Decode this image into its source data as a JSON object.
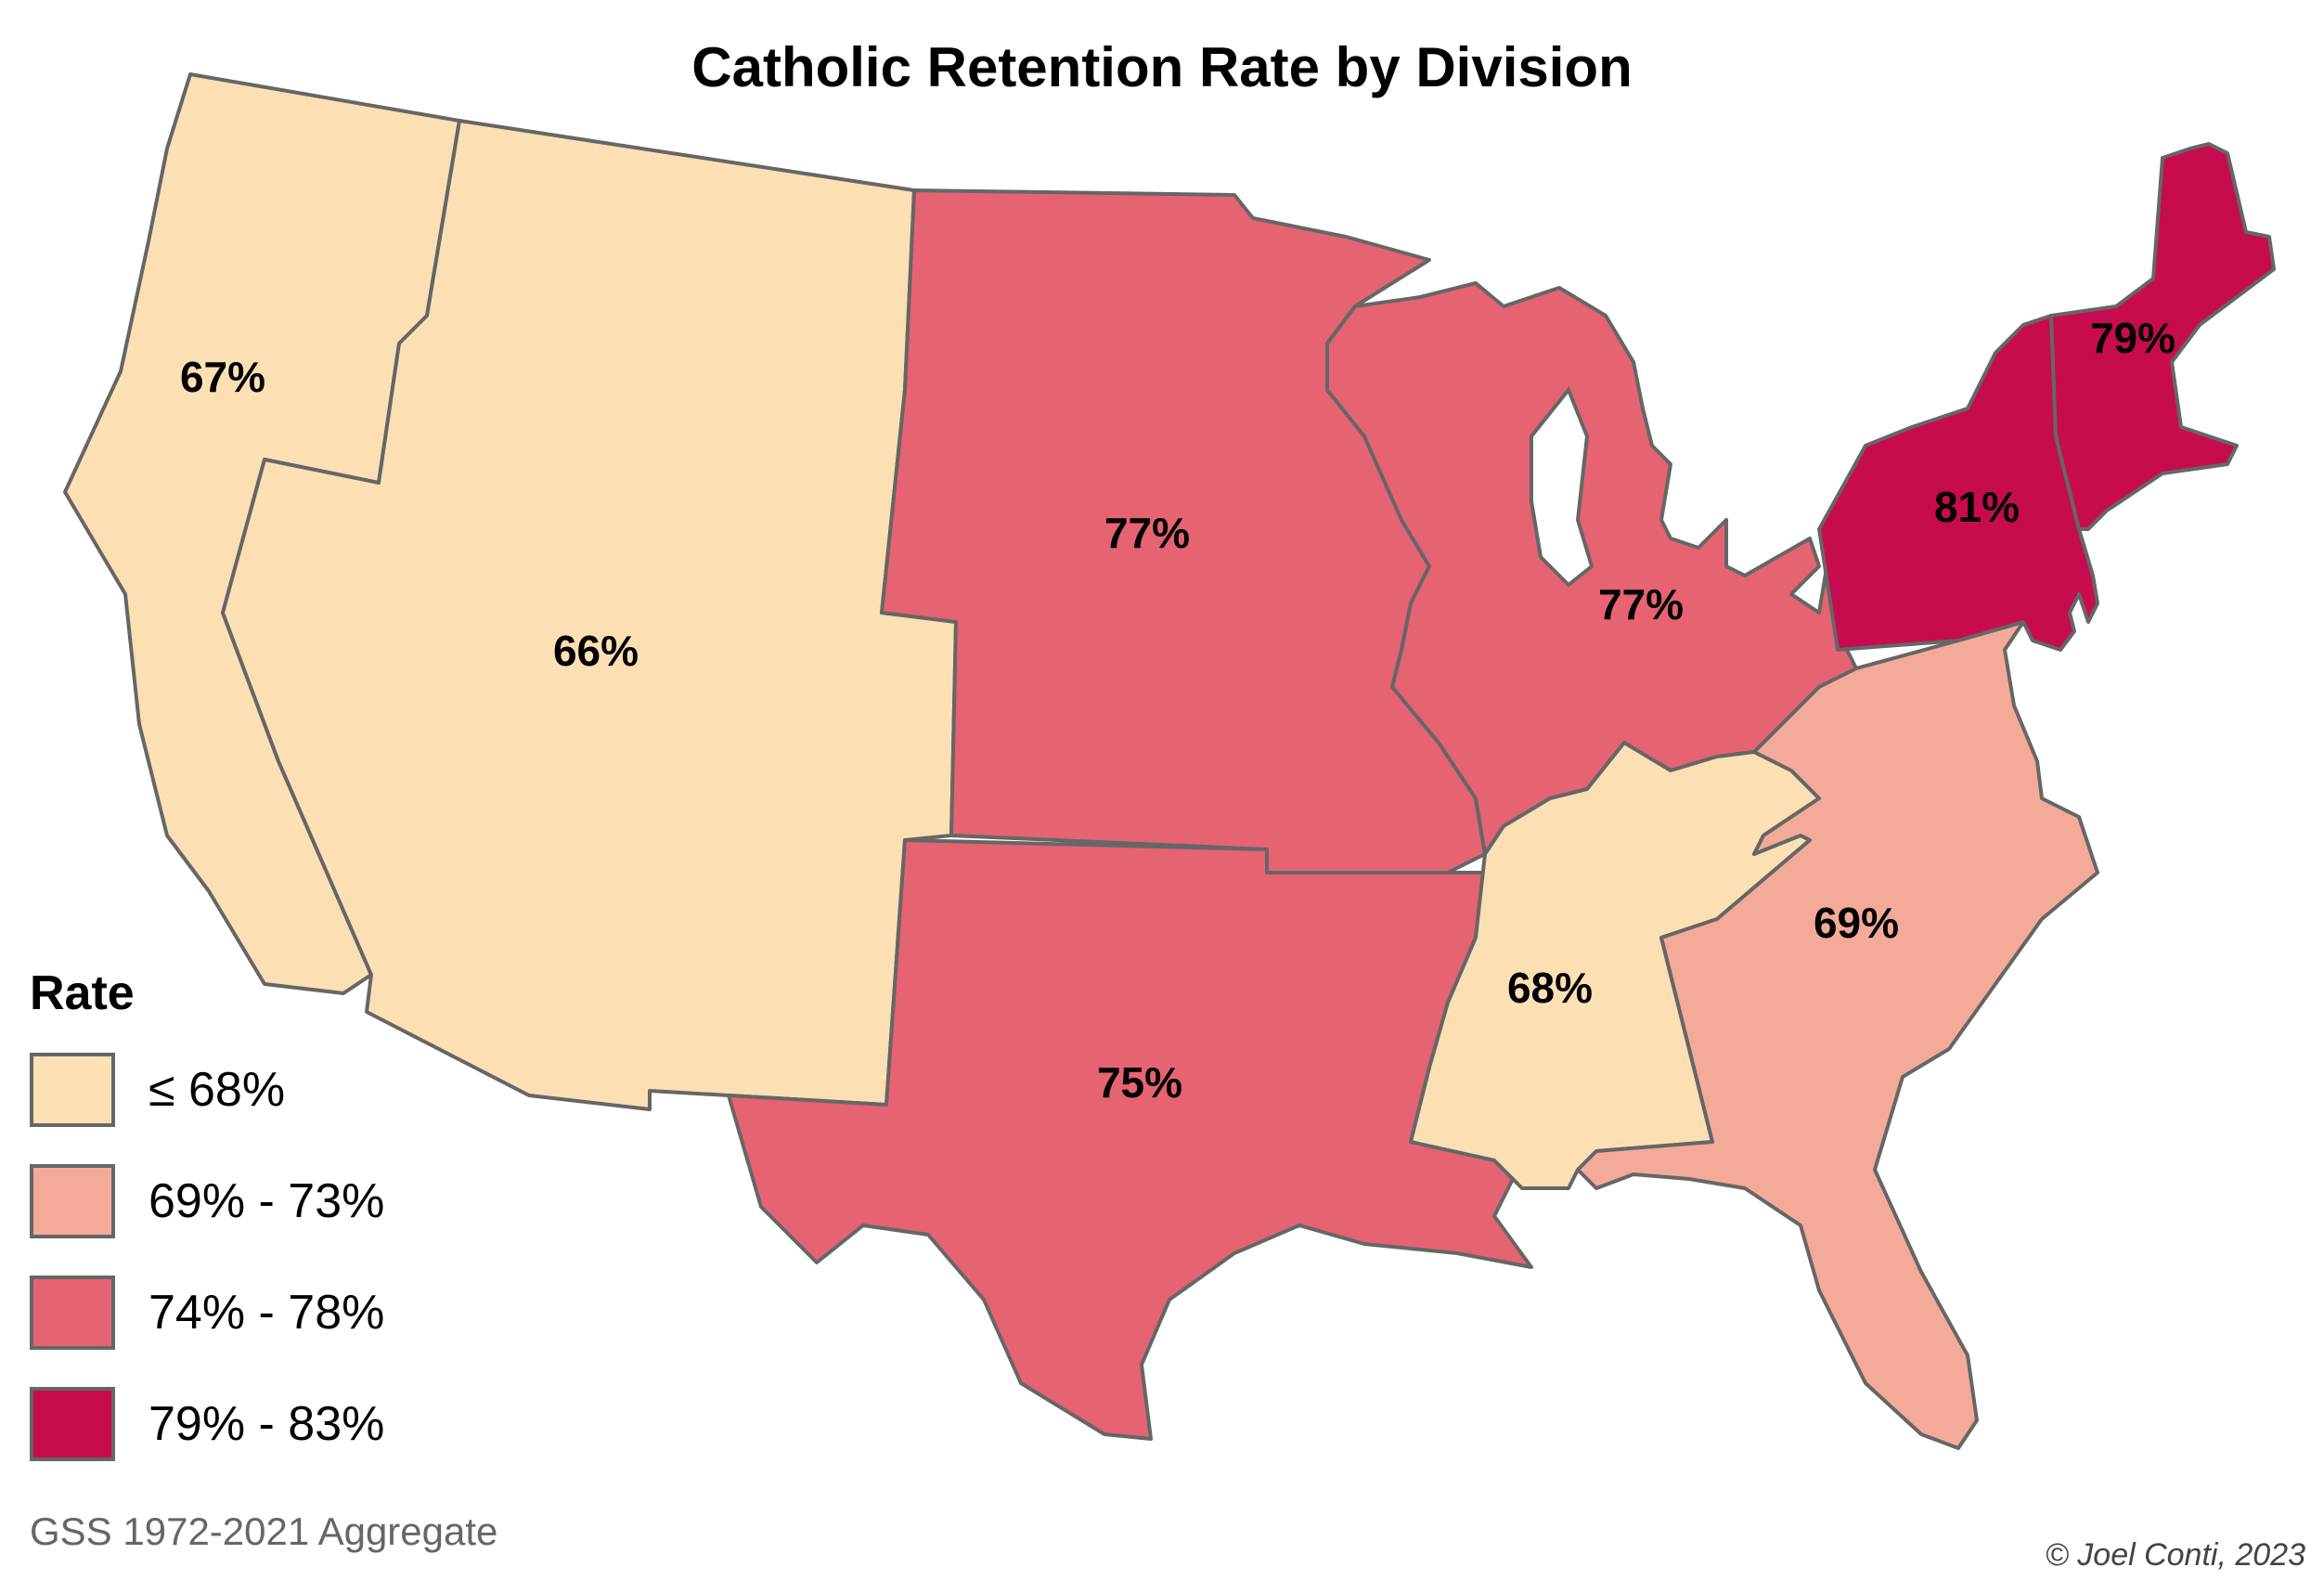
{
  "title": "Catholic Retention Rate by Division",
  "legend": {
    "title": "Rate",
    "items": [
      {
        "label": "≤ 68%",
        "color": "#FCE0B4"
      },
      {
        "label": "69% - 73%",
        "color": "#F4AA98"
      },
      {
        "label": "74% - 78%",
        "color": "#E66372"
      },
      {
        "label": "79% - 83%",
        "color": "#C60C4E"
      }
    ]
  },
  "regions": [
    {
      "id": "pacific",
      "label": "67%",
      "value": 67,
      "color": "#FCE0B4"
    },
    {
      "id": "mountain",
      "label": "66%",
      "value": 66,
      "color": "#FCE0B4"
    },
    {
      "id": "west-north-central",
      "label": "77%",
      "value": 77,
      "color": "#E66372"
    },
    {
      "id": "west-south-central",
      "label": "75%",
      "value": 75,
      "color": "#E66372"
    },
    {
      "id": "east-north-central",
      "label": "77%",
      "value": 77,
      "color": "#E66372"
    },
    {
      "id": "east-south-central",
      "label": "68%",
      "value": 68,
      "color": "#FCE0B4"
    },
    {
      "id": "south-atlantic",
      "label": "69%",
      "value": 69,
      "color": "#F4AA98"
    },
    {
      "id": "middle-atlantic",
      "label": "81%",
      "value": 81,
      "color": "#C60C4E"
    },
    {
      "id": "new-england",
      "label": "79%",
      "value": 79,
      "color": "#C60C4E"
    }
  ],
  "source": "GSS 1972-2021 Aggregate",
  "credit": "© Joel Conti, 2023"
}
